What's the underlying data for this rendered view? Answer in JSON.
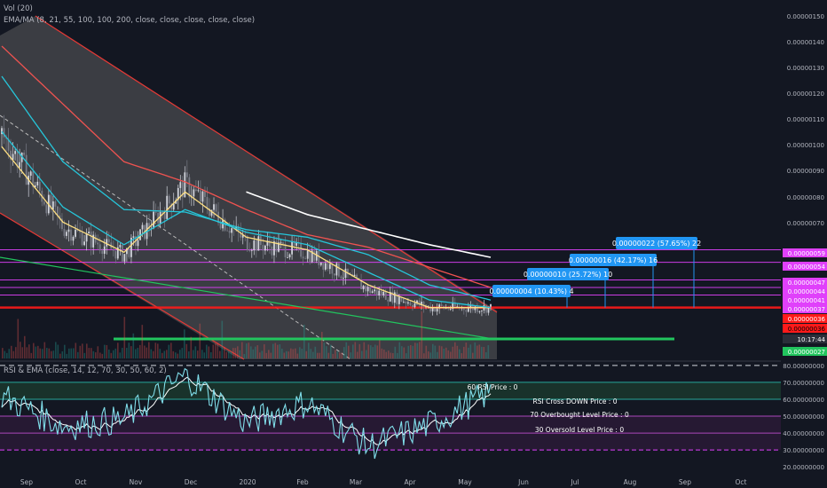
{
  "header": {
    "vol_label": "Vol (20)",
    "ma_label": "EMA/MA (8, 21, 55, 100, 100, 200, close, close, close, close, close)",
    "rsi_label": "RSI & EMA (close, 14, 12, 70, 30, 50, 60, 2)"
  },
  "price_axis": {
    "ticks": [
      "0.00000150",
      "0.00000140",
      "0.00000130",
      "0.00000120",
      "0.00000110",
      "0.00000100",
      "0.00000090",
      "0.00000080",
      "0.00000070",
      "0.00000059",
      "0.00000054",
      "0.00000047",
      "0.00000044",
      "0.00000041",
      "0.00000037",
      "0.00000036",
      "0.00000036",
      "0.00000027"
    ],
    "clock": "10:17:44"
  },
  "rsi_axis": {
    "ticks": [
      "80.00000000",
      "70.00000000",
      "60.00000000",
      "50.00000000",
      "40.00000000",
      "30.00000000",
      "20.00000000"
    ]
  },
  "time_axis": {
    "labels": [
      "Sep",
      "Oct",
      "Nov",
      "Dec",
      "2020",
      "Feb",
      "Mar",
      "Apr",
      "May",
      "Jun",
      "Jul",
      "Aug",
      "Sep",
      "Oct"
    ]
  },
  "targets": [
    {
      "label": "0.00000004 (10.43%) 4"
    },
    {
      "label": "0.00000010 (25.72%) 10"
    },
    {
      "label": "0.00000016 (42.17%) 16"
    },
    {
      "label": "0.00000022 (57.65%) 22"
    }
  ],
  "rsi_notes": {
    "rsi60": "60 RSI Price : 0",
    "cross_down": "RSI Cross DOWN Price : 0",
    "overbought": "70 Overbought Level Price : 0",
    "oversold": "30 Oversold Level Price : 0"
  },
  "colors": {
    "background": "#131722",
    "up": "#26a69a",
    "down": "#ef5350",
    "candle_up": "#d1d4dc",
    "candle_down": "#787b86",
    "channel_fill": "#6d6d6d",
    "channel_line": "#e53935",
    "resistance": "#ff1a1a",
    "support": "#22c55e",
    "magenta": "#e040fb",
    "target_box": "#2196f3",
    "ema8": "#ffe082",
    "ema21": "#26c6da",
    "ema55": "#26c6da",
    "ema100": "#ef5350",
    "ema200": "#ffffff",
    "rsi": "#80deea",
    "rsi_ema": "#ffffff",
    "rsi_zone_high": "#1b3a2e",
    "rsi_zone_low": "#2f1b3a"
  },
  "chart_data": {
    "type": "candlestick",
    "x": [
      "Sep",
      "Oct",
      "Nov",
      "Dec",
      "2020",
      "Feb",
      "Mar",
      "Apr",
      "May"
    ],
    "close": [
      1.05e-06,
      6.8e-07,
      5.7e-07,
      8.5e-07,
      6.2e-07,
      5.8e-07,
      4.3e-07,
      3.6e-07,
      3.6e-07
    ],
    "ema_series": [
      {
        "name": "EMA 8",
        "values": [
          1e-06,
          7e-07,
          5.8e-07,
          8.2e-07,
          6.4e-07,
          5.9e-07,
          4.5e-07,
          3.6e-07,
          3.6e-07
        ]
      },
      {
        "name": "EMA 21",
        "values": [
          1.06e-06,
          7.6e-07,
          6.1e-07,
          7.5e-07,
          6.6e-07,
          6.1e-07,
          5e-07,
          3.9e-07,
          3.6e-07
        ]
      },
      {
        "name": "EMA 55",
        "values": [
          1.28e-06,
          9.4e-07,
          7.5e-07,
          7.4e-07,
          6.7e-07,
          6.4e-07,
          5.7e-07,
          4.5e-07,
          3.9e-07
        ]
      },
      {
        "name": "MA 100",
        "values": [
          1.4e-06,
          1.17e-06,
          9.4e-07,
          8.6e-07,
          7.5e-07,
          6.5e-07,
          6e-07,
          5.2e-07,
          4.4e-07
        ]
      },
      {
        "name": "MA 200",
        "values": [
          null,
          null,
          null,
          null,
          8.2e-07,
          7.3e-07,
          6.7e-07,
          6.1e-07,
          5.6e-07
        ]
      }
    ],
    "price_levels": [
      5.9e-07,
      5.4e-07,
      4.7e-07,
      4.4e-07,
      4.1e-07,
      3.7e-07,
      3.6e-07,
      2.7e-07
    ],
    "rsi": [
      62,
      44,
      48,
      74,
      46,
      58,
      32,
      45,
      64
    ],
    "rsi_levels": [
      70,
      60,
      50,
      40,
      30
    ],
    "ylim": [
      2e-07,
      1.52e-06
    ]
  }
}
